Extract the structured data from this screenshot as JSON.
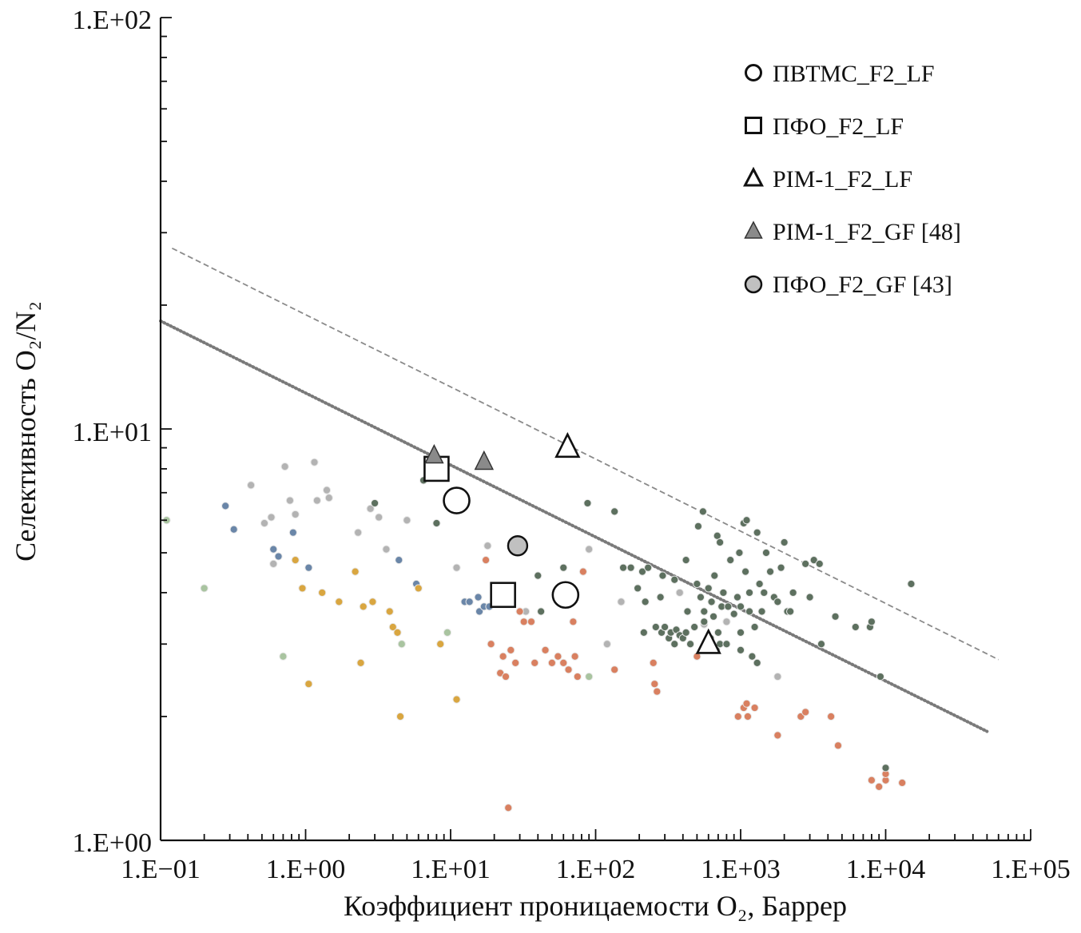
{
  "chart_data": {
    "type": "scatter",
    "scale": "log-log",
    "xlabel": "Коэффициент проницаемости O₂, Баррер",
    "ylabel": "Селективность O₂/N₂",
    "xlim": [
      0.1,
      100000
    ],
    "ylim": [
      1,
      100
    ],
    "x_ticks": [
      0.1,
      1,
      10,
      100,
      1000,
      10000,
      100000
    ],
    "x_tick_labels": [
      "1.E−01",
      "1.E+00",
      "1.E+01",
      "1.E+02",
      "1.E+03",
      "1.E+04",
      "1.E+05"
    ],
    "y_ticks": [
      1,
      10,
      100
    ],
    "y_tick_labels": [
      "1.E+00",
      "1.E+01",
      "1.E+02"
    ],
    "legend": {
      "placement": "top-right",
      "entries": [
        {
          "label": "ПВТМС_F2_LF",
          "marker": "circle-open"
        },
        {
          "label": "ПФО_F2_LF",
          "marker": "square-open"
        },
        {
          "label": "PIM-1_F2_LF",
          "marker": "triangle-open"
        },
        {
          "label": "PIM-1_F2_GF [48]",
          "marker": "triangle-gray"
        },
        {
          "label": "ПФО_F2_GF [43]",
          "marker": "circle-gray"
        }
      ]
    },
    "upper_bound_lines": [
      {
        "name": "upper bound (dashed)",
        "style": "dashed",
        "x": [
          0.12,
          60000
        ],
        "y": [
          27.5,
          2.75
        ]
      },
      {
        "name": "upper bound (dotted)",
        "style": "dotted",
        "x": [
          0.1,
          50000
        ],
        "y": [
          18.3,
          1.84
        ]
      }
    ],
    "series": [
      {
        "name": "ПВТМС_F2_LF",
        "marker": "circle-open",
        "points": [
          [
            11.0,
            6.7
          ],
          [
            62.0,
            3.95
          ]
        ]
      },
      {
        "name": "ПФО_F2_LF",
        "marker": "square-open",
        "points": [
          [
            8.0,
            8.0
          ],
          [
            23.0,
            3.95
          ]
        ]
      },
      {
        "name": "PIM-1_F2_LF",
        "marker": "triangle-open",
        "points": [
          [
            64.0,
            9.0
          ],
          [
            600.0,
            3.0
          ]
        ]
      },
      {
        "name": "PIM-1_F2_GF [48]",
        "marker": "triangle-gray",
        "points": [
          [
            7.7,
            8.6
          ],
          [
            17.0,
            8.3
          ]
        ]
      },
      {
        "name": "ПФО_F2_GF [43]",
        "marker": "circle-gray",
        "points": [
          [
            29.0,
            5.2
          ]
        ]
      }
    ],
    "background_points": [
      {
        "group": "grey",
        "color": "#b3b3b3",
        "points": [
          [
            0.42,
            7.3
          ],
          [
            0.52,
            5.9
          ],
          [
            0.58,
            6.1
          ],
          [
            0.6,
            4.7
          ],
          [
            0.72,
            8.1
          ],
          [
            0.78,
            6.7
          ],
          [
            0.85,
            6.2
          ],
          [
            1.15,
            8.3
          ],
          [
            1.2,
            6.7
          ],
          [
            1.4,
            7.1
          ],
          [
            1.45,
            6.8
          ],
          [
            2.3,
            5.6
          ],
          [
            2.8,
            6.4
          ],
          [
            3.2,
            6.1
          ],
          [
            3.6,
            5.1
          ],
          [
            5.0,
            6.0
          ],
          [
            11.0,
            4.6
          ],
          [
            18.0,
            5.2
          ],
          [
            33.0,
            3.6
          ],
          [
            90.0,
            5.1
          ],
          [
            120.0,
            3.0
          ],
          [
            150.0,
            3.8
          ],
          [
            380.0,
            4.0
          ],
          [
            560.0,
            3.35
          ],
          [
            800.0,
            3.4
          ],
          [
            1800.0,
            2.5
          ]
        ]
      },
      {
        "group": "light-green",
        "color": "#a9c4a0",
        "points": [
          [
            0.11,
            6.0
          ],
          [
            0.2,
            4.1
          ],
          [
            0.7,
            2.8
          ],
          [
            4.6,
            3.0
          ],
          [
            9.5,
            3.2
          ],
          [
            90.0,
            2.5
          ]
        ]
      },
      {
        "group": "blue",
        "color": "#6a86a8",
        "points": [
          [
            0.28,
            6.5
          ],
          [
            0.32,
            5.7
          ],
          [
            0.6,
            5.1
          ],
          [
            0.65,
            4.9
          ],
          [
            0.82,
            5.6
          ],
          [
            1.05,
            4.6
          ],
          [
            4.4,
            4.8
          ],
          [
            5.8,
            4.2
          ],
          [
            12.5,
            3.8
          ],
          [
            13.5,
            3.8
          ],
          [
            15.5,
            3.9
          ],
          [
            15.8,
            3.6
          ],
          [
            17.0,
            3.7
          ],
          [
            18.5,
            3.7
          ]
        ]
      },
      {
        "group": "orange-yellow",
        "color": "#d9a640",
        "points": [
          [
            0.85,
            4.8
          ],
          [
            0.95,
            4.1
          ],
          [
            1.3,
            4.0
          ],
          [
            1.7,
            3.8
          ],
          [
            2.2,
            4.5
          ],
          [
            2.5,
            3.7
          ],
          [
            2.9,
            3.8
          ],
          [
            3.8,
            3.6
          ],
          [
            4.0,
            3.3
          ],
          [
            4.3,
            3.2
          ],
          [
            6.0,
            4.1
          ],
          [
            8.5,
            3.0
          ],
          [
            1.05,
            2.4
          ],
          [
            2.4,
            2.7
          ],
          [
            4.5,
            2.0
          ],
          [
            11.0,
            2.2
          ]
        ]
      },
      {
        "group": "orange-red",
        "color": "#d98060",
        "points": [
          [
            17.5,
            4.8
          ],
          [
            19.0,
            3.0
          ],
          [
            20.0,
            4.0
          ],
          [
            22.0,
            2.55
          ],
          [
            23.0,
            2.8
          ],
          [
            24.0,
            2.5
          ],
          [
            26.0,
            2.9
          ],
          [
            28.0,
            2.7
          ],
          [
            30.0,
            3.6
          ],
          [
            32.0,
            3.4
          ],
          [
            36.0,
            3.4
          ],
          [
            38.0,
            2.7
          ],
          [
            45.0,
            2.9
          ],
          [
            50.0,
            2.7
          ],
          [
            55.0,
            2.8
          ],
          [
            60.0,
            2.7
          ],
          [
            65.0,
            2.6
          ],
          [
            70.0,
            3.4
          ],
          [
            72.0,
            2.8
          ],
          [
            75.0,
            2.5
          ],
          [
            82.0,
            4.5
          ],
          [
            135.0,
            2.6
          ],
          [
            250.0,
            2.7
          ],
          [
            255.0,
            2.4
          ],
          [
            265.0,
            2.3
          ],
          [
            500.0,
            2.8
          ],
          [
            960.0,
            2.0
          ],
          [
            1050.0,
            2.1
          ],
          [
            1100.0,
            2.15
          ],
          [
            1120.0,
            2.0
          ],
          [
            1250.0,
            2.1
          ],
          [
            1800.0,
            1.8
          ],
          [
            2600.0,
            2.0
          ],
          [
            2800.0,
            2.05
          ],
          [
            4200.0,
            2.0
          ],
          [
            4700.0,
            1.7
          ],
          [
            8000.0,
            1.4
          ],
          [
            9000.0,
            1.35
          ],
          [
            10000.0,
            1.4
          ],
          [
            10000.0,
            1.45
          ],
          [
            13000.0,
            1.38
          ],
          [
            25.0,
            1.2
          ]
        ]
      },
      {
        "group": "dark-green",
        "color": "#5d705f",
        "points": [
          [
            3.0,
            6.6
          ],
          [
            6.5,
            7.5
          ],
          [
            8.0,
            5.9
          ],
          [
            40.0,
            4.4
          ],
          [
            42.0,
            3.6
          ],
          [
            60.0,
            4.6
          ],
          [
            88.0,
            6.6
          ],
          [
            135.0,
            6.3
          ],
          [
            155.0,
            4.6
          ],
          [
            175.0,
            4.6
          ],
          [
            195.0,
            4.1
          ],
          [
            210.0,
            4.5
          ],
          [
            215.0,
            3.2
          ],
          [
            220.0,
            3.8
          ],
          [
            230.0,
            4.6
          ],
          [
            260.0,
            3.3
          ],
          [
            280.0,
            3.9
          ],
          [
            285.0,
            3.2
          ],
          [
            290.0,
            4.4
          ],
          [
            300.0,
            3.3
          ],
          [
            320.0,
            3.1
          ],
          [
            330.0,
            3.2
          ],
          [
            350.0,
            3.0
          ],
          [
            350.0,
            4.3
          ],
          [
            360.0,
            3.25
          ],
          [
            380.0,
            3.15
          ],
          [
            400.0,
            3.1
          ],
          [
            420.0,
            3.2
          ],
          [
            430.0,
            3.6
          ],
          [
            450.0,
            3.0
          ],
          [
            480.0,
            3.3
          ],
          [
            500.0,
            4.2
          ],
          [
            510.0,
            5.8
          ],
          [
            530.0,
            3.9
          ],
          [
            550.0,
            6.3
          ],
          [
            560.0,
            3.4
          ],
          [
            600.0,
            4.1
          ],
          [
            630.0,
            3.8
          ],
          [
            650.0,
            3.5
          ],
          [
            660.0,
            4.4
          ],
          [
            690.0,
            5.5
          ],
          [
            700.0,
            3.2
          ],
          [
            720.0,
            3.0
          ],
          [
            720.0,
            5.3
          ],
          [
            740.0,
            3.7
          ],
          [
            760.0,
            4.0
          ],
          [
            800.0,
            3.0
          ],
          [
            820.0,
            3.7
          ],
          [
            850.0,
            4.8
          ],
          [
            900.0,
            3.55
          ],
          [
            950.0,
            3.9
          ],
          [
            980.0,
            5.0
          ],
          [
            1000.0,
            3.7
          ],
          [
            1000.0,
            3.2
          ],
          [
            1050.0,
            5.9
          ],
          [
            1080.0,
            4.5
          ],
          [
            1100.0,
            6.0
          ],
          [
            1150.0,
            3.6
          ],
          [
            1150.0,
            4.0
          ],
          [
            1200.0,
            2.8
          ],
          [
            1250.0,
            3.3
          ],
          [
            1300.0,
            5.6
          ],
          [
            1300.0,
            2.7
          ],
          [
            1350.0,
            4.2
          ],
          [
            1400.0,
            3.6
          ],
          [
            1450.0,
            4.0
          ],
          [
            1500.0,
            5.0
          ],
          [
            1600.0,
            4.5
          ],
          [
            1700.0,
            3.9
          ],
          [
            1800.0,
            3.8
          ],
          [
            1900.0,
            4.6
          ],
          [
            2000.0,
            5.3
          ],
          [
            2100.0,
            3.6
          ],
          [
            2200.0,
            3.6
          ],
          [
            2300.0,
            4.0
          ],
          [
            2800.0,
            4.7
          ],
          [
            3000.0,
            3.9
          ],
          [
            3200.0,
            4.8
          ],
          [
            3500.0,
            4.7
          ],
          [
            3600.0,
            3.0
          ],
          [
            4500.0,
            3.5
          ],
          [
            6200.0,
            3.3
          ],
          [
            7800.0,
            3.3
          ],
          [
            8000.0,
            3.4
          ],
          [
            9200.0,
            2.5
          ],
          [
            10000.0,
            1.5
          ],
          [
            15000.0,
            4.2
          ],
          [
            1000.0,
            2.9
          ],
          [
            420.0,
            4.8
          ],
          [
            560.0,
            3.6
          ],
          [
            620.0,
            3.1
          ],
          [
            680.0,
            2.9
          ]
        ]
      }
    ]
  }
}
